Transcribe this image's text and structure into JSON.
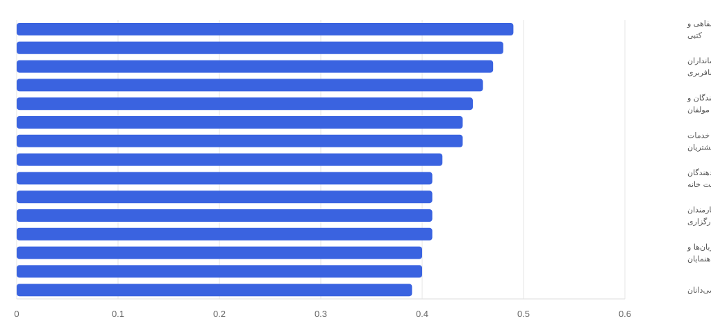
{
  "chart_data": {
    "type": "bar",
    "orientation": "horizontal",
    "title": "",
    "xlabel": "",
    "ylabel": "",
    "xlim": [
      0,
      0.6
    ],
    "x_ticks": [
      "0",
      "0.1",
      "0.2",
      "0.3",
      "0.4",
      "0.5",
      "0.6"
    ],
    "grid": true,
    "bar_color": "#3a63e0",
    "values": [
      0.49,
      0.48,
      0.47,
      0.46,
      0.45,
      0.44,
      0.44,
      0.42,
      0.41,
      0.41,
      0.41,
      0.41,
      0.4,
      0.4,
      0.39
    ],
    "category_labels": [
      [
        "مترجمان شفاهی و",
        "کتبی"
      ],
      [
        "مهمانداران",
        "مسافربری"
      ],
      [
        "نویسندگان و",
        "مولفان"
      ],
      [
        "کارشناسان خدمات",
        "مشتریان"
      ],
      [
        "آموزش‌دهندگان",
        "مدیریت خانه"
      ],
      [
        "کارمندان",
        "کارگزاری"
      ],
      [
        "دربان‌ها و",
        "راهنمایان"
      ],
      [
        "ریاضی‌دانان"
      ]
    ]
  }
}
